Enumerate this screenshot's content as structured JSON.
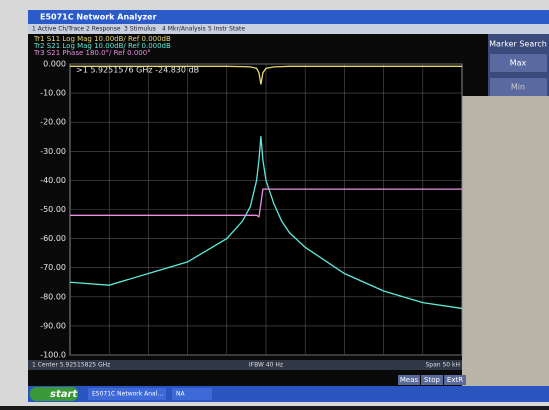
{
  "window": {
    "title": "E5071C Network Analyzer",
    "menu": [
      "1 Active Ch/Trace",
      "2 Response",
      "3 Stimulus",
      "4 Mkr/Analysis",
      "5 Instr State"
    ]
  },
  "chart_data": {
    "type": "line",
    "marker_readout": ">1   5.9251576 GHz  -24.830 dB",
    "footer_left": "1  Center 5.92515825 GHz",
    "footer_mid": "IFBW 40 Hz",
    "footer_right": "Span 50 kH",
    "x": [
      -25,
      -20,
      -15,
      -10,
      -5,
      -3,
      -2,
      -1.2,
      -0.9,
      -0.65,
      -0.4,
      0,
      1,
      2,
      3,
      5,
      10,
      15,
      20,
      25
    ],
    "xlim": [
      -25,
      25
    ],
    "ylim": [
      -100,
      0
    ],
    "yticks": [
      {
        "value": 0,
        "label": "0.000"
      },
      {
        "value": -10,
        "label": "-10.00"
      },
      {
        "value": -20,
        "label": "-20.00"
      },
      {
        "value": -30,
        "label": "-30.00"
      },
      {
        "value": -40,
        "label": "-40.00"
      },
      {
        "value": -50,
        "label": "-50.00"
      },
      {
        "value": -60,
        "label": "-60.00"
      },
      {
        "value": -70,
        "label": "-70.00"
      },
      {
        "value": -80,
        "label": "-80.00"
      },
      {
        "value": -90,
        "label": "-90.00"
      },
      {
        "value": -100,
        "label": "-100.0"
      }
    ],
    "grid": true,
    "series": [
      {
        "name": "Tr1  S11  Log Mag  10.00dB/  Ref  0.000dB",
        "color": "#e8d870",
        "values": [
          -0.8,
          -0.8,
          -0.8,
          -0.8,
          -0.8,
          -0.9,
          -1,
          -1.5,
          -3,
          -7,
          -3,
          -1.5,
          -1,
          -0.9,
          -0.8,
          -0.8,
          -0.8,
          -0.8,
          -0.8,
          -0.8
        ]
      },
      {
        "name": "Tr2  S21  Log Mag  10.00dB/  Ref  0.000dB",
        "color": "#5fe8d8",
        "values": [
          -75,
          -76,
          -72,
          -68,
          -60,
          -54,
          -49,
          -40,
          -33,
          -24.8,
          -33,
          -40,
          -48,
          -54,
          -58,
          -63,
          -72,
          -78,
          -82,
          -84
        ]
      },
      {
        "name": "Tr3  S21  Phase  180.0°/  Ref  0.000°",
        "color": "#e890e0",
        "values": [
          -52,
          -52,
          -52,
          -52,
          -52,
          -52,
          -52,
          -52,
          -52.5,
          -48,
          -43,
          -43,
          -43,
          -43,
          -43,
          -43,
          -43,
          -43,
          -43,
          -43
        ]
      }
    ]
  },
  "side_panel": {
    "title": "Marker Search",
    "buttons": [
      "Max",
      "Min"
    ]
  },
  "status": [
    "Meas",
    "Stop",
    "ExtR"
  ],
  "taskbar": {
    "start": "start",
    "items": [
      "E5071C Network Anal...",
      "NA"
    ]
  }
}
